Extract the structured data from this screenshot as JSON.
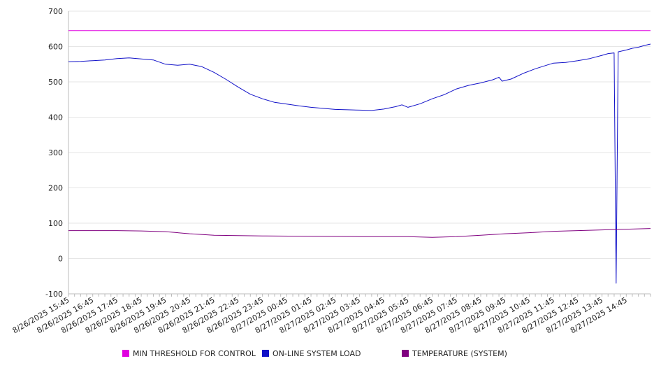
{
  "chart_data": {
    "type": "line",
    "title": "",
    "xlabel": "",
    "ylabel": "",
    "ylim": [
      -100,
      700
    ],
    "yticks": [
      -100,
      0,
      100,
      200,
      300,
      400,
      500,
      600,
      700
    ],
    "grid": "horizontal",
    "legend_position": "bottom",
    "x_tick_labels": [
      "8/26/2025 15:45",
      "8/26/2025 16:45",
      "8/26/2025 17:45",
      "8/26/2025 18:45",
      "8/26/2025 19:45",
      "8/26/2025 20:45",
      "8/26/2025 21:45",
      "8/26/2025 22:45",
      "8/26/2025 23:45",
      "8/27/2025 00:45",
      "8/27/2025 01:45",
      "8/27/2025 02:45",
      "8/27/2025 03:45",
      "8/27/2025 04:45",
      "8/27/2025 05:45",
      "8/27/2025 06:45",
      "8/27/2025 07:45",
      "8/27/2025 08:45",
      "8/27/2025 09:45",
      "8/27/2025 10:45",
      "8/27/2025 11:45",
      "8/27/2025 12:45",
      "8/27/2025 13:45",
      "8/27/2025 14:45"
    ],
    "series": [
      {
        "name": "MIN THRESHOLD FOR CONTROL",
        "color": "#e000e0",
        "points": [
          [
            "8/26/2025 15:45",
            645
          ],
          [
            "8/27/2025 15:45",
            645
          ]
        ]
      },
      {
        "name": "ON-LINE SYSTEM LOAD",
        "color": "#1010c8",
        "points": [
          [
            "8/26/2025 15:45",
            557
          ],
          [
            "8/26/2025 16:15",
            558
          ],
          [
            "8/26/2025 16:45",
            560
          ],
          [
            "8/26/2025 17:15",
            562
          ],
          [
            "8/26/2025 17:45",
            566
          ],
          [
            "8/26/2025 18:15",
            568
          ],
          [
            "8/26/2025 18:45",
            565
          ],
          [
            "8/26/2025 19:15",
            562
          ],
          [
            "8/26/2025 19:45",
            550
          ],
          [
            "8/26/2025 20:15",
            547
          ],
          [
            "8/26/2025 20:45",
            550
          ],
          [
            "8/26/2025 21:15",
            543
          ],
          [
            "8/26/2025 21:45",
            527
          ],
          [
            "8/26/2025 22:15",
            507
          ],
          [
            "8/26/2025 22:45",
            485
          ],
          [
            "8/26/2025 23:15",
            465
          ],
          [
            "8/26/2025 23:45",
            452
          ],
          [
            "8/27/2025 00:15",
            442
          ],
          [
            "8/27/2025 00:45",
            437
          ],
          [
            "8/27/2025 01:15",
            432
          ],
          [
            "8/27/2025 01:45",
            428
          ],
          [
            "8/27/2025 02:15",
            425
          ],
          [
            "8/27/2025 02:45",
            422
          ],
          [
            "8/27/2025 03:15",
            421
          ],
          [
            "8/27/2025 03:45",
            420
          ],
          [
            "8/27/2025 04:15",
            419
          ],
          [
            "8/27/2025 04:45",
            423
          ],
          [
            "8/27/2025 05:15",
            430
          ],
          [
            "8/27/2025 05:30",
            435
          ],
          [
            "8/27/2025 05:45",
            428
          ],
          [
            "8/27/2025 06:15",
            438
          ],
          [
            "8/27/2025 06:45",
            452
          ],
          [
            "8/27/2025 07:15",
            464
          ],
          [
            "8/27/2025 07:45",
            480
          ],
          [
            "8/27/2025 08:15",
            490
          ],
          [
            "8/27/2025 08:45",
            497
          ],
          [
            "8/27/2025 09:15",
            506
          ],
          [
            "8/27/2025 09:30",
            513
          ],
          [
            "8/27/2025 09:38",
            502
          ],
          [
            "8/27/2025 10:00",
            508
          ],
          [
            "8/27/2025 10:30",
            524
          ],
          [
            "8/27/2025 11:00",
            537
          ],
          [
            "8/27/2025 11:30",
            548
          ],
          [
            "8/27/2025 11:45",
            553
          ],
          [
            "8/27/2025 12:15",
            555
          ],
          [
            "8/27/2025 12:45",
            560
          ],
          [
            "8/27/2025 13:15",
            566
          ],
          [
            "8/27/2025 13:45",
            575
          ],
          [
            "8/27/2025 14:00",
            580
          ],
          [
            "8/27/2025 14:15",
            582
          ],
          [
            "8/27/2025 14:20",
            -70
          ],
          [
            "8/27/2025 14:25",
            585
          ],
          [
            "8/27/2025 14:45",
            590
          ],
          [
            "8/27/2025 15:00",
            595
          ],
          [
            "8/27/2025 15:15",
            598
          ],
          [
            "8/27/2025 15:30",
            603
          ],
          [
            "8/27/2025 15:45",
            607
          ]
        ]
      },
      {
        "name": "TEMPERATURE (SYSTEM)",
        "color": "#800080",
        "points": [
          [
            "8/26/2025 15:45",
            79
          ],
          [
            "8/26/2025 17:45",
            79
          ],
          [
            "8/26/2025 18:45",
            78
          ],
          [
            "8/26/2025 19:45",
            76
          ],
          [
            "8/26/2025 20:45",
            70
          ],
          [
            "8/26/2025 21:45",
            66
          ],
          [
            "8/26/2025 23:45",
            64
          ],
          [
            "8/27/2025 01:45",
            63
          ],
          [
            "8/27/2025 03:45",
            62
          ],
          [
            "8/27/2025 05:45",
            62
          ],
          [
            "8/27/2025 06:45",
            60
          ],
          [
            "8/27/2025 07:45",
            62
          ],
          [
            "8/27/2025 08:45",
            66
          ],
          [
            "8/27/2025 09:45",
            70
          ],
          [
            "8/27/2025 10:45",
            73
          ],
          [
            "8/27/2025 11:45",
            77
          ],
          [
            "8/27/2025 12:45",
            79
          ],
          [
            "8/27/2025 13:45",
            81
          ],
          [
            "8/27/2025 14:45",
            83
          ],
          [
            "8/27/2025 15:45",
            85
          ]
        ]
      }
    ]
  }
}
